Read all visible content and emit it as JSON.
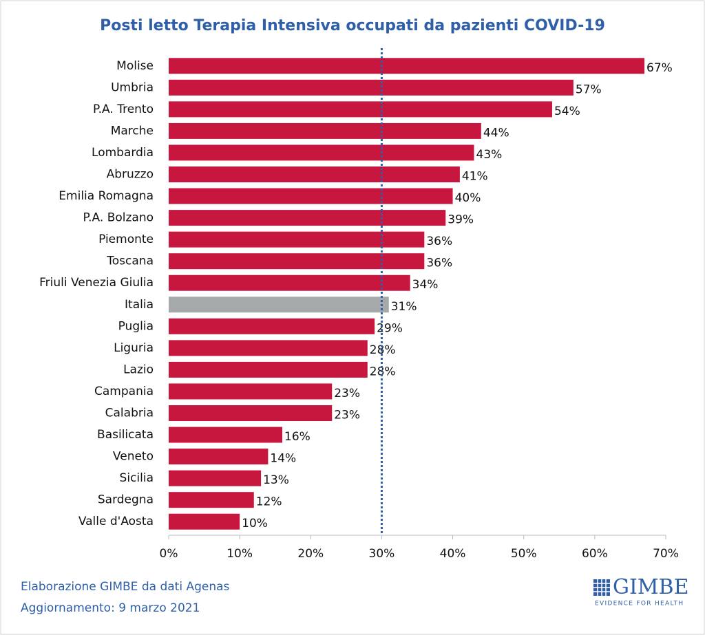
{
  "chart_data": {
    "type": "barh",
    "title": "Posti letto Terapia Intensiva occupati da pazienti COVID-19",
    "categories": [
      "Molise",
      "Umbria",
      "P.A. Trento",
      "Marche",
      "Lombardia",
      "Abruzzo",
      "Emilia Romagna",
      "P.A. Bolzano",
      "Piemonte",
      "Toscana",
      "Friuli Venezia Giulia",
      "Italia",
      "Puglia",
      "Liguria",
      "Lazio",
      "Campania",
      "Calabria",
      "Basilicata",
      "Veneto",
      "Sicilia",
      "Sardegna",
      "Valle d'Aosta"
    ],
    "values": [
      67,
      57,
      54,
      44,
      43,
      41,
      40,
      39,
      36,
      36,
      34,
      31,
      29,
      28,
      28,
      23,
      23,
      16,
      14,
      13,
      12,
      10
    ],
    "value_labels": [
      "67%",
      "57%",
      "54%",
      "44%",
      "43%",
      "41%",
      "40%",
      "39%",
      "36%",
      "36%",
      "34%",
      "31%",
      "29%",
      "28%",
      "28%",
      "23%",
      "23%",
      "16%",
      "14%",
      "13%",
      "12%",
      "10%"
    ],
    "colors": [
      "#c8173f",
      "#c8173f",
      "#c8173f",
      "#c8173f",
      "#c8173f",
      "#c8173f",
      "#c8173f",
      "#c8173f",
      "#c8173f",
      "#c8173f",
      "#c8173f",
      "#a6a9a9",
      "#c8173f",
      "#c8173f",
      "#c8173f",
      "#c8173f",
      "#c8173f",
      "#c8173f",
      "#c8173f",
      "#c8173f",
      "#c8173f",
      "#c8173f"
    ],
    "xlim": [
      0,
      70
    ],
    "xticks": [
      {
        "value": 0,
        "label": "0%"
      },
      {
        "value": 10,
        "label": "10%"
      },
      {
        "value": 20,
        "label": "20%"
      },
      {
        "value": 30,
        "label": "30%"
      },
      {
        "value": 40,
        "label": "40%"
      },
      {
        "value": 50,
        "label": "50%"
      },
      {
        "value": 60,
        "label": "60%"
      },
      {
        "value": 70,
        "label": "70%"
      }
    ],
    "reference_line": {
      "value": 30,
      "color": "#2e5fa8"
    },
    "source": "Elaborazione GIMBE da dati Agenas",
    "updated": "Aggiornamento: 9 marzo 2021",
    "logo": {
      "name": "GIMBE",
      "tagline": "EVIDENCE FOR HEALTH"
    }
  }
}
